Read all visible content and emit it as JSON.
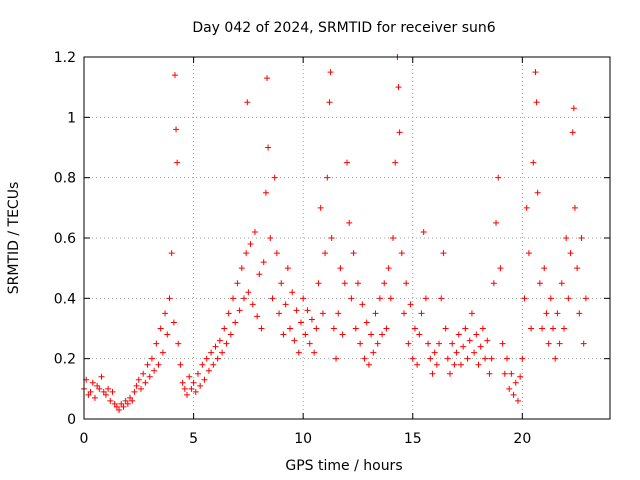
{
  "chart_data": {
    "type": "scatter",
    "title": "Day 042 of 2024, SRMTID for receiver sun6",
    "xlabel": "GPS time / hours",
    "ylabel": "SRMTID / TECUs",
    "xlim": [
      0,
      24
    ],
    "ylim": [
      0,
      1.2
    ],
    "xticks": [
      0,
      5,
      10,
      15,
      20
    ],
    "yticks": [
      0,
      0.2,
      0.4,
      0.6,
      0.8,
      1,
      1.2
    ],
    "xtick_labels": [
      "0",
      "5",
      "10",
      "15",
      "20"
    ],
    "ytick_labels": [
      "0",
      "0.2",
      "0.4",
      "0.6",
      "0.8",
      "1",
      "1.2"
    ],
    "grid": true,
    "marker": "+",
    "color": "#ff0000",
    "series": [
      {
        "name": "SRMTID",
        "points": [
          [
            0.0,
            0.1
          ],
          [
            0.1,
            0.13
          ],
          [
            0.2,
            0.08
          ],
          [
            0.3,
            0.09
          ],
          [
            0.4,
            0.12
          ],
          [
            0.5,
            0.07
          ],
          [
            0.6,
            0.11
          ],
          [
            0.7,
            0.1
          ],
          [
            0.8,
            0.14
          ],
          [
            0.9,
            0.09
          ],
          [
            1.0,
            0.08
          ],
          [
            1.1,
            0.1
          ],
          [
            1.2,
            0.06
          ],
          [
            1.3,
            0.09
          ],
          [
            1.4,
            0.05
          ],
          [
            1.5,
            0.04
          ],
          [
            1.6,
            0.03
          ],
          [
            1.7,
            0.05
          ],
          [
            1.8,
            0.04
          ],
          [
            1.9,
            0.06
          ],
          [
            2.0,
            0.05
          ],
          [
            2.1,
            0.07
          ],
          [
            2.2,
            0.06
          ],
          [
            2.3,
            0.09
          ],
          [
            2.4,
            0.11
          ],
          [
            2.5,
            0.13
          ],
          [
            2.6,
            0.1
          ],
          [
            2.7,
            0.15
          ],
          [
            2.8,
            0.12
          ],
          [
            2.9,
            0.18
          ],
          [
            3.0,
            0.14
          ],
          [
            3.1,
            0.2
          ],
          [
            3.2,
            0.16
          ],
          [
            3.3,
            0.25
          ],
          [
            3.4,
            0.18
          ],
          [
            3.5,
            0.3
          ],
          [
            3.6,
            0.22
          ],
          [
            3.7,
            0.35
          ],
          [
            3.8,
            0.28
          ],
          [
            3.9,
            0.4
          ],
          [
            4.0,
            0.55
          ],
          [
            4.1,
            0.32
          ],
          [
            4.15,
            1.14
          ],
          [
            4.2,
            0.96
          ],
          [
            4.25,
            0.85
          ],
          [
            4.3,
            0.25
          ],
          [
            4.4,
            0.18
          ],
          [
            4.5,
            0.12
          ],
          [
            4.6,
            0.1
          ],
          [
            4.7,
            0.08
          ],
          [
            4.8,
            0.14
          ],
          [
            4.9,
            0.1
          ],
          [
            5.0,
            0.12
          ],
          [
            5.1,
            0.09
          ],
          [
            5.2,
            0.15
          ],
          [
            5.3,
            0.11
          ],
          [
            5.4,
            0.18
          ],
          [
            5.5,
            0.13
          ],
          [
            5.6,
            0.2
          ],
          [
            5.7,
            0.16
          ],
          [
            5.8,
            0.22
          ],
          [
            5.9,
            0.18
          ],
          [
            6.0,
            0.24
          ],
          [
            6.1,
            0.2
          ],
          [
            6.2,
            0.26
          ],
          [
            6.3,
            0.22
          ],
          [
            6.4,
            0.3
          ],
          [
            6.5,
            0.25
          ],
          [
            6.6,
            0.35
          ],
          [
            6.7,
            0.28
          ],
          [
            6.8,
            0.4
          ],
          [
            6.9,
            0.32
          ],
          [
            7.0,
            0.45
          ],
          [
            7.1,
            0.36
          ],
          [
            7.2,
            0.5
          ],
          [
            7.3,
            0.4
          ],
          [
            7.4,
            0.55
          ],
          [
            7.45,
            1.05
          ],
          [
            7.5,
            0.42
          ],
          [
            7.6,
            0.58
          ],
          [
            7.7,
            0.38
          ],
          [
            7.8,
            0.62
          ],
          [
            7.9,
            0.34
          ],
          [
            8.0,
            0.48
          ],
          [
            8.1,
            0.3
          ],
          [
            8.2,
            0.52
          ],
          [
            8.3,
            0.75
          ],
          [
            8.35,
            1.13
          ],
          [
            8.4,
            0.9
          ],
          [
            8.5,
            0.6
          ],
          [
            8.6,
            0.4
          ],
          [
            8.7,
            0.8
          ],
          [
            8.8,
            0.55
          ],
          [
            8.9,
            0.35
          ],
          [
            9.0,
            0.45
          ],
          [
            9.1,
            0.28
          ],
          [
            9.2,
            0.38
          ],
          [
            9.3,
            0.5
          ],
          [
            9.4,
            0.3
          ],
          [
            9.5,
            0.42
          ],
          [
            9.6,
            0.26
          ],
          [
            9.7,
            0.36
          ],
          [
            9.8,
            0.22
          ],
          [
            9.9,
            0.32
          ],
          [
            10.0,
            0.4
          ],
          [
            10.1,
            0.28
          ],
          [
            10.2,
            0.36
          ],
          [
            10.3,
            0.25
          ],
          [
            10.4,
            0.33
          ],
          [
            10.5,
            0.22
          ],
          [
            10.6,
            0.3
          ],
          [
            10.7,
            0.45
          ],
          [
            10.8,
            0.7
          ],
          [
            10.9,
            0.35
          ],
          [
            11.0,
            0.55
          ],
          [
            11.1,
            0.8
          ],
          [
            11.2,
            1.05
          ],
          [
            11.25,
            1.15
          ],
          [
            11.3,
            0.6
          ],
          [
            11.4,
            0.3
          ],
          [
            11.5,
            0.2
          ],
          [
            11.6,
            0.35
          ],
          [
            11.7,
            0.5
          ],
          [
            11.8,
            0.28
          ],
          [
            11.9,
            0.45
          ],
          [
            12.0,
            0.85
          ],
          [
            12.1,
            0.65
          ],
          [
            12.2,
            0.4
          ],
          [
            12.3,
            0.55
          ],
          [
            12.4,
            0.3
          ],
          [
            12.5,
            0.45
          ],
          [
            12.6,
            0.25
          ],
          [
            12.7,
            0.38
          ],
          [
            12.8,
            0.2
          ],
          [
            12.9,
            0.32
          ],
          [
            13.0,
            0.18
          ],
          [
            13.1,
            0.28
          ],
          [
            13.2,
            0.22
          ],
          [
            13.3,
            0.35
          ],
          [
            13.4,
            0.25
          ],
          [
            13.5,
            0.4
          ],
          [
            13.6,
            0.28
          ],
          [
            13.7,
            0.45
          ],
          [
            13.8,
            0.3
          ],
          [
            13.9,
            0.5
          ],
          [
            14.0,
            0.4
          ],
          [
            14.1,
            0.6
          ],
          [
            14.2,
            0.85
          ],
          [
            14.3,
            1.2
          ],
          [
            14.35,
            1.1
          ],
          [
            14.4,
            0.95
          ],
          [
            14.5,
            0.55
          ],
          [
            14.6,
            0.35
          ],
          [
            14.7,
            0.45
          ],
          [
            14.8,
            0.25
          ],
          [
            14.9,
            0.38
          ],
          [
            15.0,
            0.2
          ],
          [
            15.1,
            0.3
          ],
          [
            15.2,
            0.18
          ],
          [
            15.3,
            0.28
          ],
          [
            15.4,
            0.35
          ],
          [
            15.5,
            0.62
          ],
          [
            15.6,
            0.4
          ],
          [
            15.7,
            0.25
          ],
          [
            15.8,
            0.2
          ],
          [
            15.9,
            0.15
          ],
          [
            16.0,
            0.22
          ],
          [
            16.1,
            0.18
          ],
          [
            16.2,
            0.25
          ],
          [
            16.3,
            0.4
          ],
          [
            16.4,
            0.55
          ],
          [
            16.5,
            0.3
          ],
          [
            16.6,
            0.2
          ],
          [
            16.7,
            0.15
          ],
          [
            16.8,
            0.25
          ],
          [
            16.9,
            0.18
          ],
          [
            17.0,
            0.22
          ],
          [
            17.1,
            0.28
          ],
          [
            17.2,
            0.18
          ],
          [
            17.3,
            0.24
          ],
          [
            17.4,
            0.3
          ],
          [
            17.5,
            0.2
          ],
          [
            17.6,
            0.26
          ],
          [
            17.7,
            0.35
          ],
          [
            17.8,
            0.22
          ],
          [
            17.9,
            0.28
          ],
          [
            18.0,
            0.18
          ],
          [
            18.1,
            0.24
          ],
          [
            18.2,
            0.3
          ],
          [
            18.3,
            0.2
          ],
          [
            18.4,
            0.26
          ],
          [
            18.5,
            0.15
          ],
          [
            18.6,
            0.2
          ],
          [
            18.7,
            0.45
          ],
          [
            18.8,
            0.65
          ],
          [
            18.9,
            0.8
          ],
          [
            19.0,
            0.5
          ],
          [
            19.1,
            0.25
          ],
          [
            19.2,
            0.15
          ],
          [
            19.3,
            0.2
          ],
          [
            19.4,
            0.1
          ],
          [
            19.5,
            0.15
          ],
          [
            19.6,
            0.08
          ],
          [
            19.7,
            0.12
          ],
          [
            19.8,
            0.06
          ],
          [
            19.9,
            0.14
          ],
          [
            20.0,
            0.2
          ],
          [
            20.1,
            0.4
          ],
          [
            20.2,
            0.7
          ],
          [
            20.3,
            0.55
          ],
          [
            20.4,
            0.3
          ],
          [
            20.5,
            0.85
          ],
          [
            20.6,
            1.15
          ],
          [
            20.65,
            1.05
          ],
          [
            20.7,
            0.75
          ],
          [
            20.8,
            0.45
          ],
          [
            20.9,
            0.3
          ],
          [
            21.0,
            0.5
          ],
          [
            21.1,
            0.35
          ],
          [
            21.2,
            0.25
          ],
          [
            21.3,
            0.4
          ],
          [
            21.4,
            0.3
          ],
          [
            21.5,
            0.2
          ],
          [
            21.6,
            0.35
          ],
          [
            21.7,
            0.25
          ],
          [
            21.8,
            0.45
          ],
          [
            21.9,
            0.3
          ],
          [
            22.0,
            0.6
          ],
          [
            22.1,
            0.4
          ],
          [
            22.2,
            0.55
          ],
          [
            22.3,
            0.95
          ],
          [
            22.35,
            1.03
          ],
          [
            22.4,
            0.7
          ],
          [
            22.5,
            0.5
          ],
          [
            22.6,
            0.35
          ],
          [
            22.7,
            0.6
          ],
          [
            22.8,
            0.25
          ],
          [
            22.9,
            0.4
          ]
        ]
      }
    ]
  }
}
